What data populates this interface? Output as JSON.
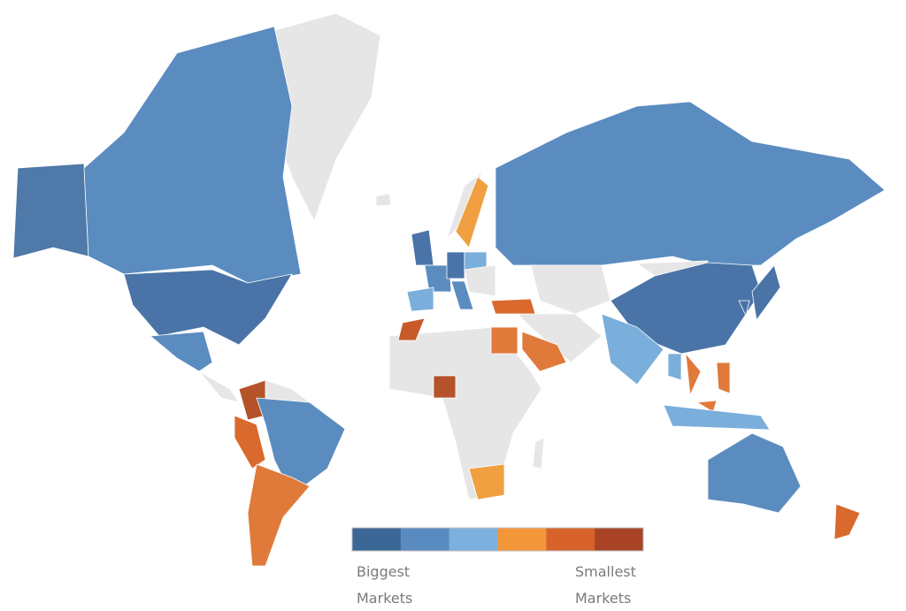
{
  "legend": {
    "colors": [
      "#3b6796",
      "#5a8bc0",
      "#7cb1de",
      "#f4963a",
      "#d8632a",
      "#a84425"
    ],
    "low_label": "Biggest Markets",
    "high_label": "Smallest Markets"
  }
}
